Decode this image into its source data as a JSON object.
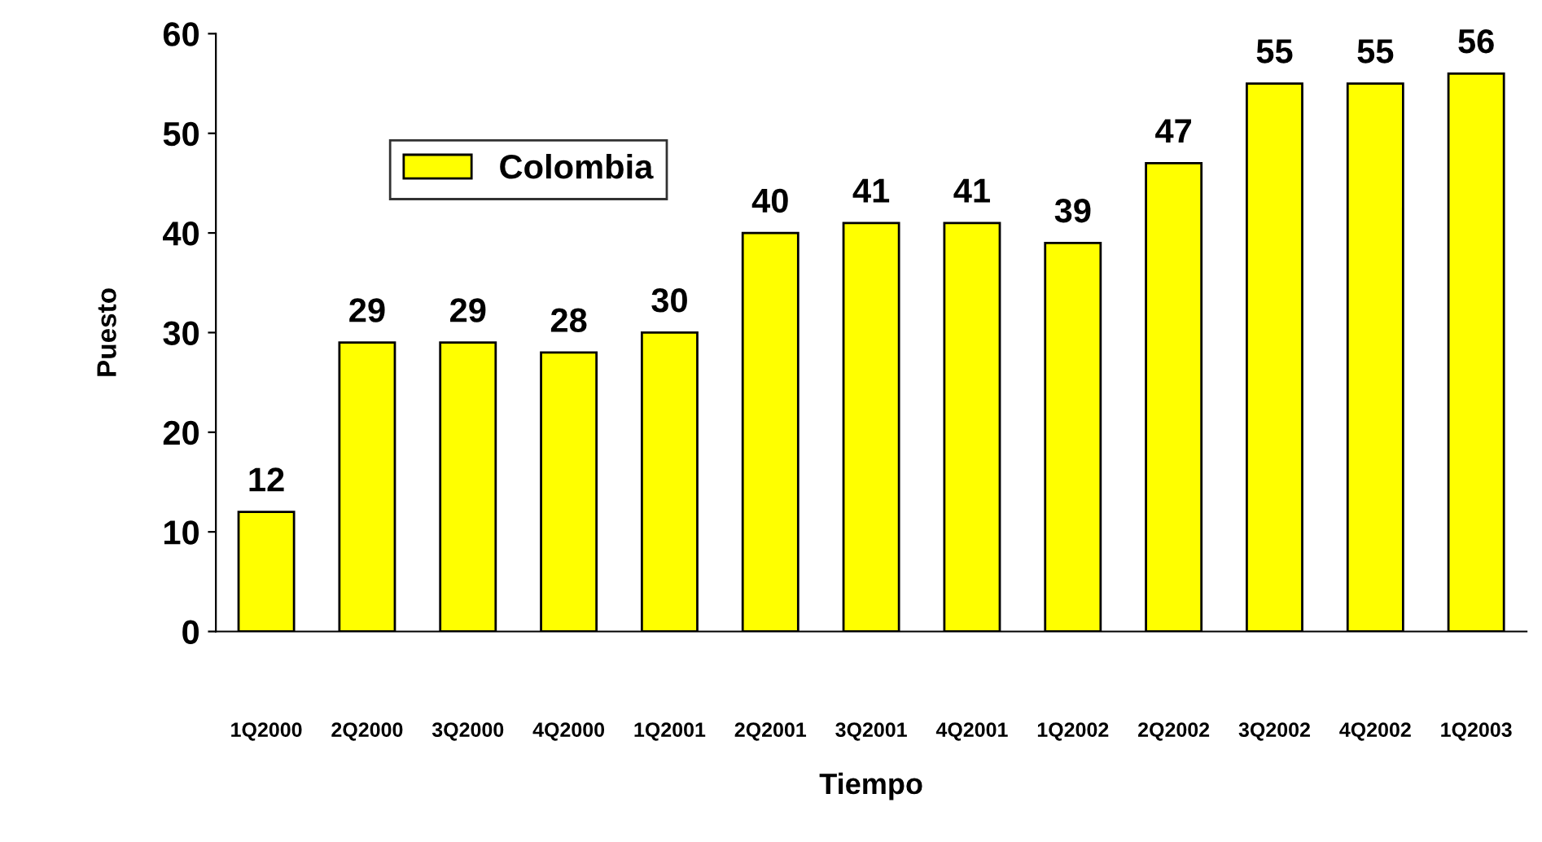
{
  "chart_data": {
    "type": "bar",
    "xlabel": "Tiempo",
    "ylabel": "Puesto",
    "categories": [
      "1Q2000",
      "2Q2000",
      "3Q2000",
      "4Q2000",
      "1Q2001",
      "2Q2001",
      "3Q2001",
      "4Q2001",
      "1Q2002",
      "2Q2002",
      "3Q2002",
      "4Q2002",
      "1Q2003"
    ],
    "series": [
      {
        "name": "Colombia",
        "color": "#ffff00",
        "values": [
          12,
          29,
          29,
          28,
          30,
          40,
          41,
          41,
          39,
          47,
          55,
          55,
          56
        ]
      }
    ],
    "ylim": [
      0,
      60
    ],
    "yticks": [
      0,
      10,
      20,
      30,
      40,
      50,
      60
    ],
    "grid": false,
    "legend": "top left",
    "data_labels": true
  }
}
